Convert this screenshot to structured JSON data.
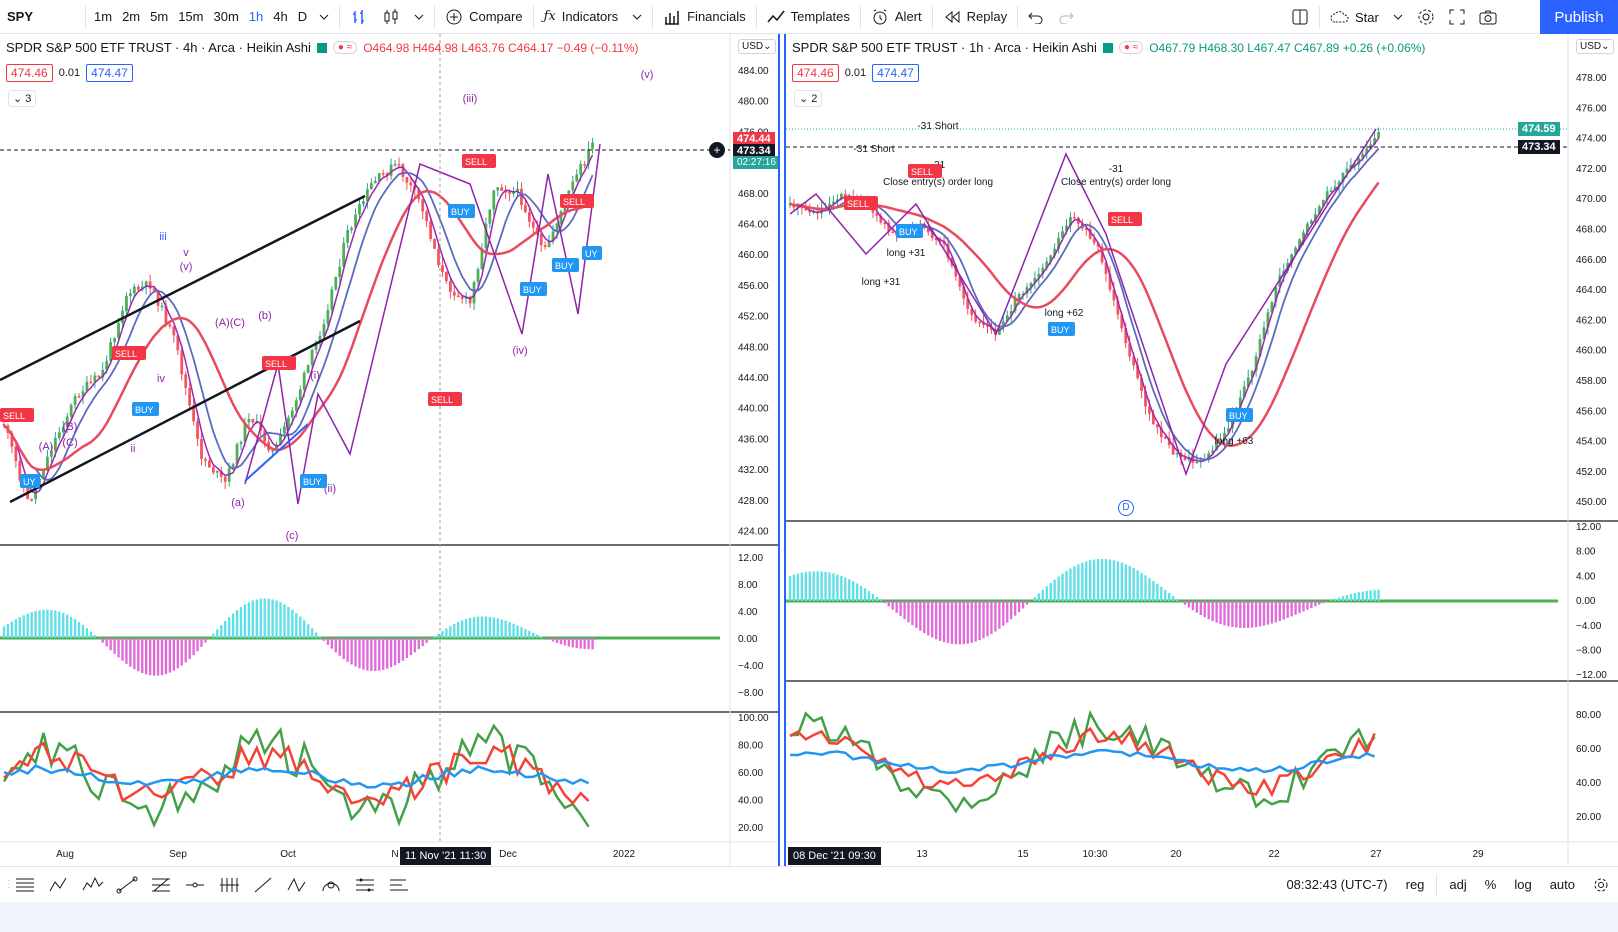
{
  "symbol": "SPY",
  "toolbar": {
    "intervals": [
      "1m",
      "2m",
      "5m",
      "15m",
      "30m",
      "1h",
      "4h",
      "D"
    ],
    "active_interval": "1h",
    "compare": "Compare",
    "indicators": "Indicators",
    "financials": "Financials",
    "templates": "Templates",
    "alert": "Alert",
    "replay": "Replay",
    "layout_name": "Star",
    "publish": "Publish"
  },
  "left_chart": {
    "title": "SPDR S&P 500 ETF TRUST · 4h · Arca · Heikin Ashi",
    "ohlc": "O464.98 H464.98 L463.76 C464.17 −0.49 (−0.11%)",
    "bid": "474.46",
    "spread": "0.01",
    "ask": "474.47",
    "collapse_count": "3",
    "currency": "USD",
    "price_ticks": [
      "484.00",
      "480.00",
      "476.00",
      "472.00",
      "468.00",
      "464.00",
      "460.00",
      "456.00",
      "452.00",
      "448.00",
      "444.00",
      "440.00",
      "436.00",
      "432.00",
      "428.00",
      "424.00"
    ],
    "price_tag_red": "474.44",
    "price_tag_dark": "473.34",
    "price_tag_green": "02:27:16",
    "osc_ticks": [
      "12.00",
      "8.00",
      "4.00",
      "0.00",
      "−4.00",
      "−8.00"
    ],
    "rsi_ticks": [
      "100.00",
      "80.00",
      "60.00",
      "40.00",
      "20.00"
    ],
    "time_ticks": [
      "Aug",
      "Sep",
      "Oct",
      "N",
      "Dec",
      "2022"
    ],
    "crosshair_time": "11 Nov '21   11:30",
    "wave_labels": [
      "(iii)",
      "iii",
      "(v)",
      "(iv)",
      "(v)",
      "v",
      "(i)",
      "(ii)",
      "(a)",
      "(b)",
      "(c)",
      "ii",
      "iv",
      "(A)",
      "(B)",
      "(C)",
      "(A)(C)"
    ]
  },
  "right_chart": {
    "title": "SPDR S&P 500 ETF TRUST · 1h · Arca · Heikin Ashi",
    "ohlc": "O467.79 H468.30 L467.47 C467.89 +0.26 (+0.06%)",
    "bid": "474.46",
    "spread": "0.01",
    "ask": "474.47",
    "collapse_count": "2",
    "currency": "USD",
    "price_ticks": [
      "478.00",
      "476.00",
      "474.00",
      "472.00",
      "470.00",
      "468.00",
      "466.00",
      "464.00",
      "462.00",
      "460.00",
      "458.00",
      "456.00",
      "454.00",
      "452.00",
      "450.00"
    ],
    "price_tag_green": "474.59",
    "price_tag_dark": "473.34",
    "osc_ticks": [
      "12.00",
      "8.00",
      "4.00",
      "0.00",
      "−4.00",
      "−8.00",
      "−12.00"
    ],
    "rsi_ticks": [
      "80.00",
      "60.00",
      "40.00",
      "20.00"
    ],
    "time_ticks": [
      "13",
      "15",
      "10:30",
      "20",
      "22",
      "27",
      "29"
    ],
    "crosshair_time": "08 Dec '21   09:30",
    "trade_labels": [
      "-31 Short",
      "-31 Short",
      "Close entry(s) order long",
      "Close entry(s) order long",
      "long +31",
      "long +31",
      "long +62",
      "long +63",
      "-31",
      "-31"
    ],
    "d_marker": "D"
  },
  "status": {
    "clock": "08:32:43 (UTC-7)",
    "reg": "reg",
    "adj": "adj",
    "percent": "%",
    "log": "log",
    "auto": "auto"
  },
  "colors": {
    "accent": "#2962ff",
    "up": "#26a69a",
    "down": "#ef5350",
    "green_line": "#1b9e2a",
    "red_line": "#e8474f",
    "blue_line": "#3d6ce0",
    "purple_line": "#9c27b0"
  }
}
